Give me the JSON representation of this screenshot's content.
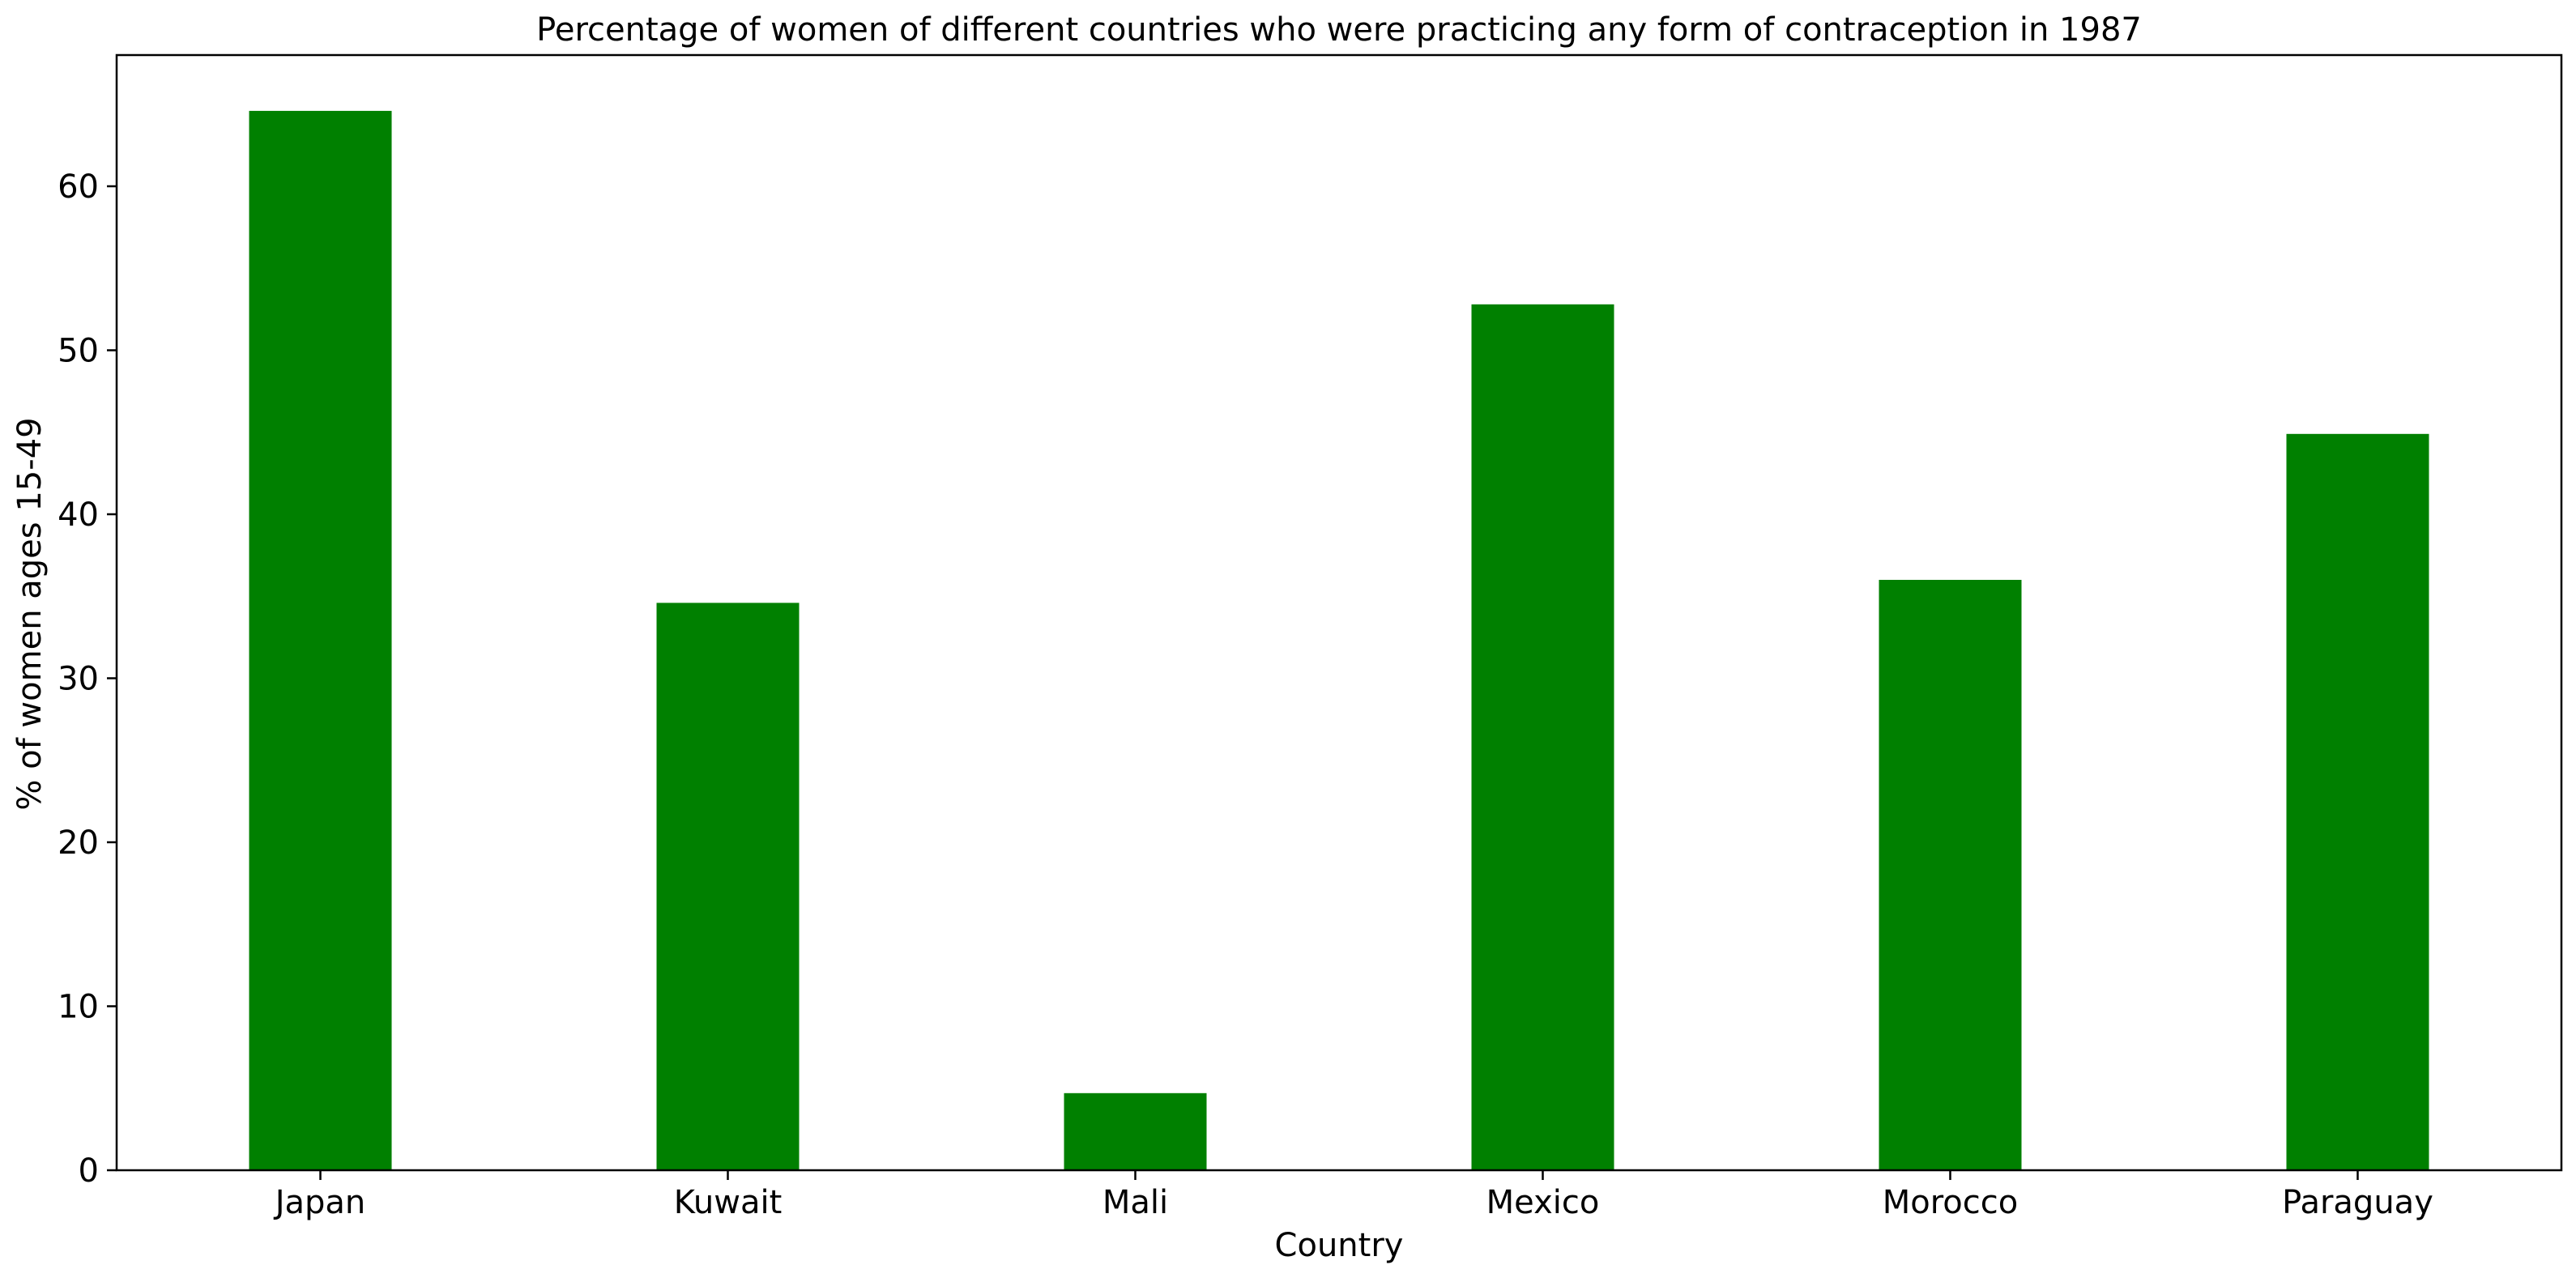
{
  "chart_data": {
    "type": "bar",
    "title": "Percentage of women of different countries who were practicing any form of contraception in 1987",
    "xlabel": "Country",
    "ylabel": "% of women ages 15-49",
    "categories": [
      "Japan",
      "Kuwait",
      "Mali",
      "Mexico",
      "Morocco",
      "Paraguay"
    ],
    "values": [
      64.6,
      34.6,
      4.7,
      52.8,
      36.0,
      44.9
    ],
    "ylim": [
      0,
      68
    ],
    "yticks": [
      0,
      10,
      20,
      30,
      40,
      50,
      60
    ],
    "bar_color": "#008000",
    "grid": false,
    "legend": "none"
  }
}
